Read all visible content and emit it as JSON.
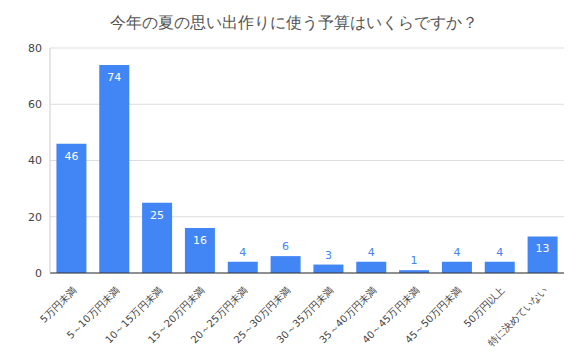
{
  "chart_data": {
    "type": "bar",
    "title": "今年の夏の思い出作りに使う予算はいくらですか？",
    "categories": [
      "5万円未満",
      "5～10万円未満",
      "10～15万円未満",
      "15～20万円未満",
      "20～25万円未満",
      "25～30万円未満",
      "30～35万円未満",
      "35～40万円未満",
      "40～45万円未満",
      "45～50万円未満",
      "50万円以上",
      "特に決めていない"
    ],
    "values": [
      46,
      74,
      25,
      16,
      4,
      6,
      3,
      4,
      1,
      4,
      4,
      13
    ],
    "color": "#4285f4",
    "ylim": [
      0,
      80
    ],
    "yticks": [
      0,
      20,
      40,
      60,
      80
    ],
    "grid": true,
    "data_labels": true
  }
}
